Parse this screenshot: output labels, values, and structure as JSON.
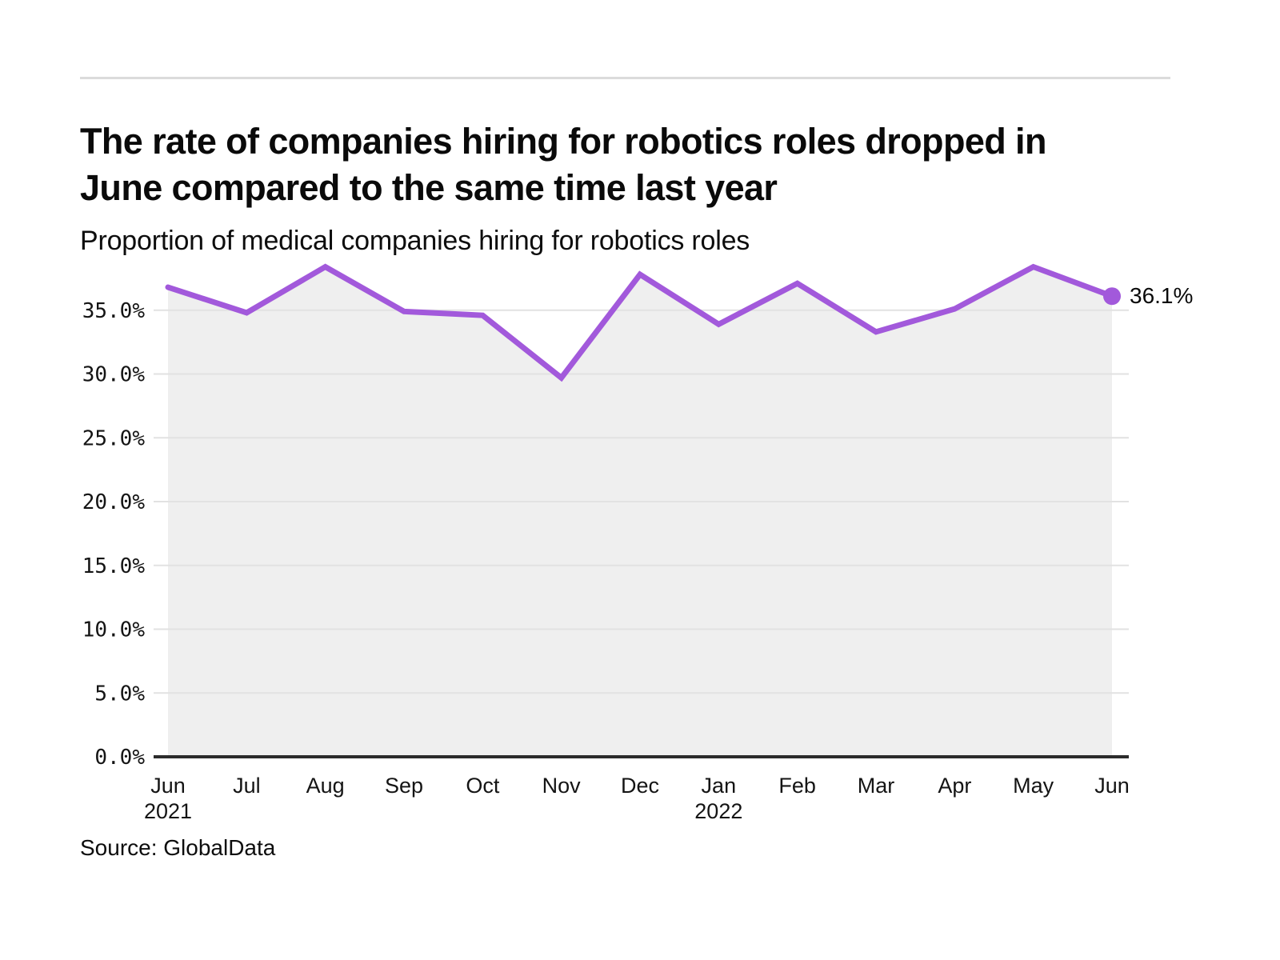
{
  "chart_data": {
    "type": "line",
    "title": "The rate of companies hiring for robotics roles dropped in\nJune compared to the same time last year",
    "subtitle": "Proportion of medical companies hiring for robotics roles",
    "categories": [
      "Jun",
      "Jul",
      "Aug",
      "Sep",
      "Oct",
      "Nov",
      "Dec",
      "Jan",
      "Feb",
      "Mar",
      "Apr",
      "May",
      "Jun"
    ],
    "year_markers": [
      {
        "index": 0,
        "label": "2021"
      },
      {
        "index": 7,
        "label": "2022"
      }
    ],
    "series": [
      {
        "name": "Proportion of medical companies hiring for robotics roles",
        "values": [
          36.8,
          34.8,
          38.4,
          34.9,
          34.6,
          29.7,
          37.8,
          33.9,
          37.1,
          33.3,
          35.1,
          38.4,
          36.1
        ]
      }
    ],
    "ylim": [
      0,
      40
    ],
    "yticks": [
      {
        "value": 0,
        "label": "0.0%"
      },
      {
        "value": 5,
        "label": "5.0%"
      },
      {
        "value": 10,
        "label": "10.0%"
      },
      {
        "value": 15,
        "label": "15.0%"
      },
      {
        "value": 20,
        "label": "20.0%"
      },
      {
        "value": 25,
        "label": "25.0%"
      },
      {
        "value": 30,
        "label": "30.0%"
      },
      {
        "value": 35,
        "label": "35.0%"
      }
    ],
    "grid": "on",
    "legend": "none",
    "last_point_label": "36.1%",
    "colors": {
      "line": "#A259DB",
      "area": "#EFEFEF",
      "gridline": "#E2E2E2",
      "axis": "#2B2B2B"
    }
  },
  "footer": {
    "source": "Source: GlobalData"
  }
}
